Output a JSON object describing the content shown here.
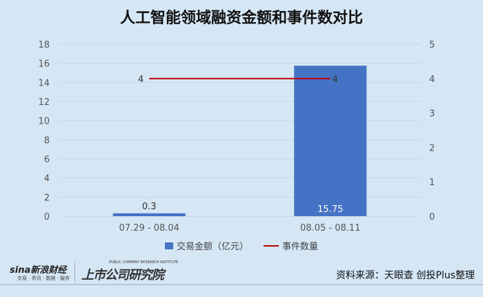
{
  "title": "人工智能领域融资金额和事件数对比",
  "chart_data": {
    "type": "bar+line",
    "title": "人工智能领域融资金额和事件数对比",
    "categories": [
      "07.29 - 08.04",
      "08.05 - 08.11"
    ],
    "series": [
      {
        "name": "交易金额（亿元）",
        "type": "bar",
        "axis": "left",
        "values": [
          0.3,
          15.75
        ],
        "color": "#4472c4",
        "data_labels": [
          "0.3",
          "15.75"
        ]
      },
      {
        "name": "事件数量",
        "type": "line",
        "axis": "right",
        "values": [
          4,
          4
        ],
        "color": "#c00000",
        "data_labels": [
          "4",
          "4"
        ]
      }
    ],
    "y_left": {
      "range": [
        0,
        18
      ],
      "ticks": [
        "0",
        "2",
        "4",
        "6",
        "8",
        "10",
        "12",
        "14",
        "16",
        "18"
      ]
    },
    "y_right": {
      "range": [
        0,
        5
      ],
      "ticks": [
        "0",
        "1",
        "2",
        "3",
        "4",
        "5"
      ]
    },
    "grid": true,
    "legend": "bottom"
  },
  "footer": {
    "logo1": "sina新浪财经",
    "logo1_sub": "交易 · 资讯 · 数据 · 服务",
    "logo2": "上市公司研究院",
    "logo2_en": "PUBLIC COMPANY RESEARCH INSTITUTE",
    "source": "资料来源：天眼查 创投Plus整理"
  }
}
